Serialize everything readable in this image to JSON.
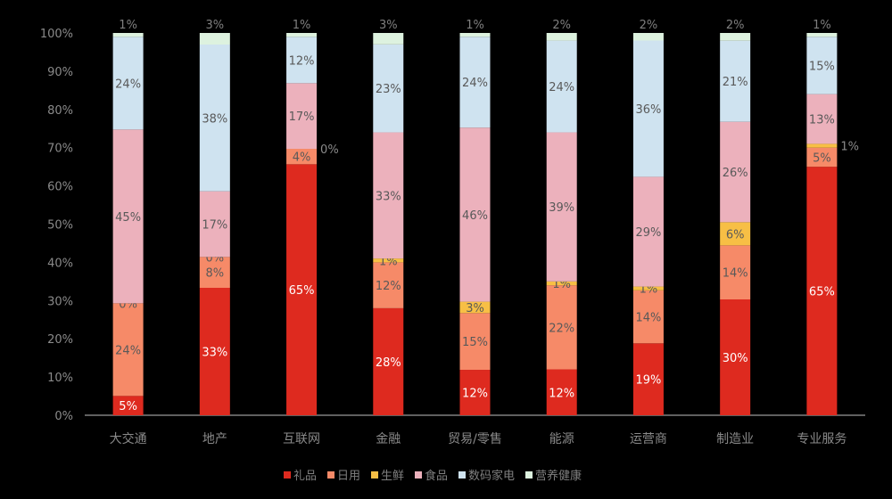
{
  "chart_data": {
    "type": "bar",
    "stacked": true,
    "title": "",
    "xlabel": "",
    "ylabel": "",
    "ylim": [
      0,
      100
    ],
    "yticks": [
      "0%",
      "10%",
      "20%",
      "30%",
      "40%",
      "50%",
      "60%",
      "70%",
      "80%",
      "90%",
      "100%"
    ],
    "grid": false,
    "legend_position": "bottom",
    "categories": [
      "大交通",
      "地产",
      "互联网",
      "金融",
      "贸易/零售",
      "能源",
      "运营商",
      "制造业",
      "专业服务"
    ],
    "series": [
      {
        "name": "礼品",
        "color": "#DE2A1F",
        "values": [
          5,
          33,
          65,
          28,
          12,
          12,
          19,
          30,
          65
        ]
      },
      {
        "name": "日用",
        "color": "#F68A68",
        "values": [
          24,
          8,
          4,
          12,
          15,
          22,
          14,
          14,
          5
        ]
      },
      {
        "name": "生鲜",
        "color": "#F7BF45",
        "values": [
          0,
          0,
          0,
          1,
          3,
          1,
          1,
          6,
          1
        ]
      },
      {
        "name": "食品",
        "color": "#ECB1BC",
        "values": [
          45,
          17,
          17,
          33,
          46,
          39,
          29,
          26,
          13
        ]
      },
      {
        "name": "数码家电",
        "color": "#CFE3F0",
        "values": [
          24,
          38,
          12,
          23,
          24,
          24,
          36,
          21,
          15
        ]
      },
      {
        "name": "营养健康",
        "color": "#DDF2DF",
        "values": [
          1,
          3,
          1,
          3,
          1,
          2,
          2,
          2,
          1
        ]
      }
    ]
  }
}
